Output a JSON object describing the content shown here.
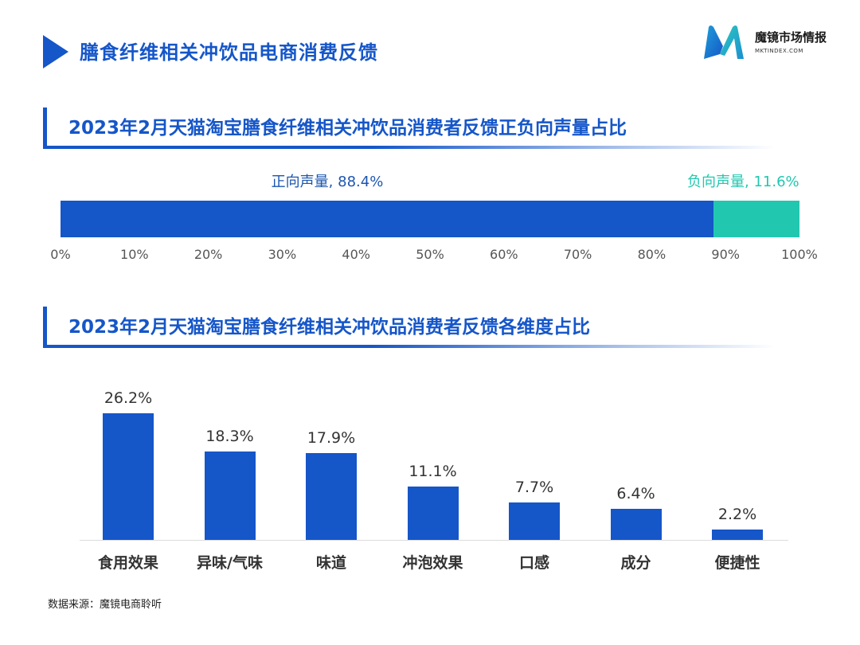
{
  "header": {
    "title": "膳食纤维相关冲饮品电商消费反馈",
    "logo_name": "魔镜市场情报",
    "logo_sub": "MKTINDEX.COM"
  },
  "colors": {
    "primary": "#1556c9",
    "negative": "#22c7b0"
  },
  "chart_data": [
    {
      "type": "bar",
      "orientation": "horizontal-stacked",
      "title": "2023年2月天猫淘宝膳食纤维相关冲饮品消费者反馈正负向声量占比",
      "series": [
        {
          "name": "正向声量",
          "value": 88.4,
          "label": "正向声量, 88.4%",
          "color": "#1556c9"
        },
        {
          "name": "负向声量",
          "value": 11.6,
          "label": "负向声量, 11.6%",
          "color": "#22c7b0"
        }
      ],
      "xlim": [
        0,
        100
      ],
      "ticks": [
        "0%",
        "10%",
        "20%",
        "30%",
        "40%",
        "50%",
        "60%",
        "70%",
        "80%",
        "90%",
        "100%"
      ],
      "grid": false
    },
    {
      "type": "bar",
      "title": "2023年2月天猫淘宝膳食纤维相关冲饮品消费者反馈各维度占比",
      "categories": [
        "食用效果",
        "异味/气味",
        "味道",
        "冲泡效果",
        "口感",
        "成分",
        "便捷性"
      ],
      "values": [
        26.2,
        18.3,
        17.9,
        11.1,
        7.7,
        6.4,
        2.2
      ],
      "value_labels": [
        "26.2%",
        "18.3%",
        "17.9%",
        "11.1%",
        "7.7%",
        "6.4%",
        "2.2%"
      ],
      "ylim": [
        0,
        26.2
      ],
      "grid": false
    }
  ],
  "footnote": "数据来源：魔镜电商聆听"
}
